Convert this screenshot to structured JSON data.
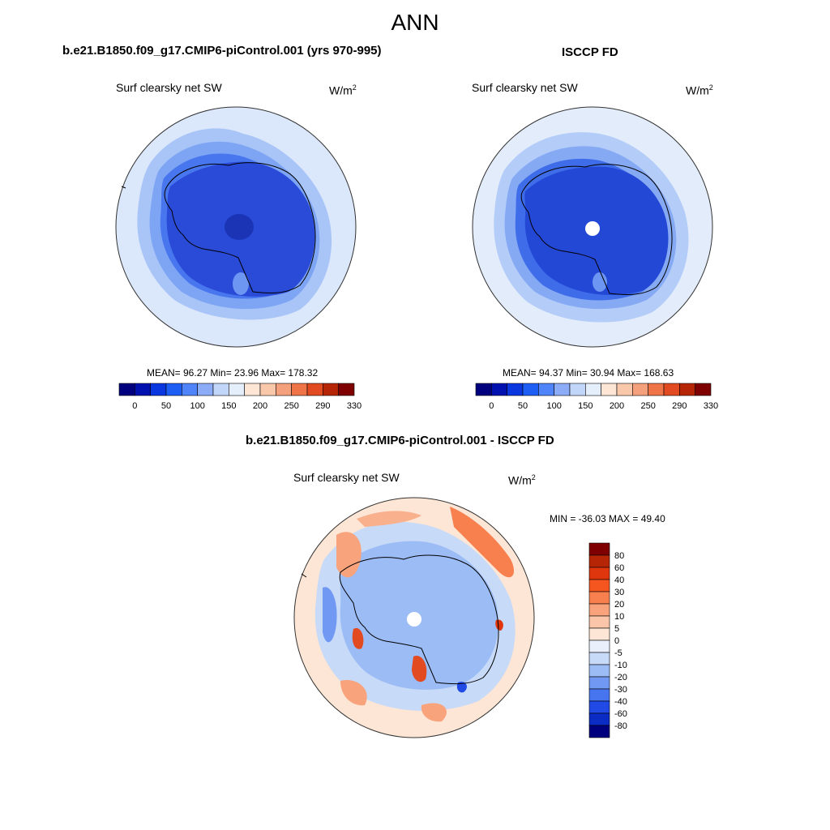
{
  "header": {
    "title": "ANN"
  },
  "panels": [
    {
      "id": "model",
      "case_label": "b.e21.B1850.f09_g17.CMIP6-piControl.001 (yrs 970-995)",
      "variable": "Surf clearsky net SW",
      "units_base": "W/m",
      "units_exp": "2",
      "stats": "MEAN=  96.27  Min=  23.96  Max= 178.32",
      "has_pole_hole": false
    },
    {
      "id": "obs",
      "case_label": "ISCCP FD",
      "variable": "Surf clearsky net SW",
      "units_base": "W/m",
      "units_exp": "2",
      "stats": "MEAN=  94.37  Min=  30.94  Max= 168.63",
      "has_pole_hole": true
    },
    {
      "id": "diff",
      "case_label": "b.e21.B1850.f09_g17.CMIP6-piControl.001 - ISCCP FD",
      "variable": "Surf clearsky net SW",
      "units_base": "W/m",
      "units_exp": "2",
      "stats": "MIN = -36.03 MAX =  49.40",
      "has_pole_hole": true
    }
  ],
  "colorbar_abs": {
    "labels": [
      "0",
      "50",
      "100",
      "150",
      "200",
      "250",
      "290",
      "330"
    ],
    "colors": [
      "#00007f",
      "#0011b0",
      "#0a37e0",
      "#1f5ef5",
      "#4f84fa",
      "#8cacf7",
      "#c1d6f8",
      "#e5eefb",
      "#fde6d5",
      "#f9c8aa",
      "#f5a07c",
      "#ef7549",
      "#e24a21",
      "#b72507",
      "#7f0000"
    ]
  },
  "colorbar_diff": {
    "labels": [
      "80",
      "60",
      "40",
      "30",
      "20",
      "10",
      "5",
      "0",
      "-5",
      "-10",
      "-20",
      "-30",
      "-40",
      "-60",
      "-80"
    ],
    "colors": [
      "#7f0000",
      "#b72507",
      "#e0360e",
      "#f5561f",
      "#f7804e",
      "#f8a37c",
      "#fac5a8",
      "#fde6d5",
      "#e9f0fb",
      "#c7daf8",
      "#9cbcf6",
      "#7199f3",
      "#4774ef",
      "#2149e5",
      "#0a2cc4",
      "#00007f"
    ]
  }
}
